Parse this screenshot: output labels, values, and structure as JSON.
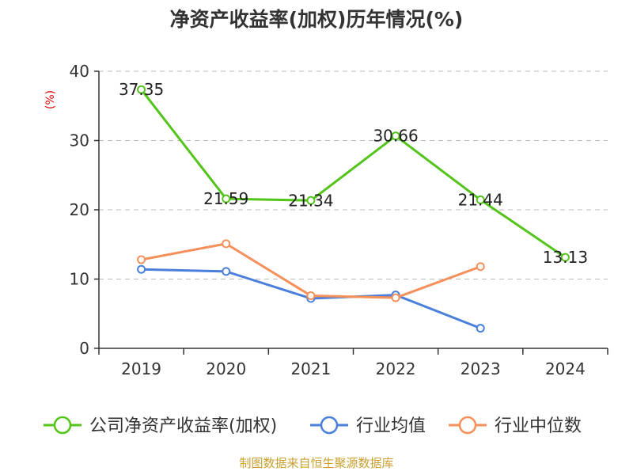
{
  "chart_data": {
    "type": "line",
    "title": "净资产收益率(加权)历年情况(%)",
    "ylabel": "(%)",
    "xlabel": "",
    "categories": [
      "2019",
      "2020",
      "2021",
      "2022",
      "2023",
      "2024"
    ],
    "ylim": [
      0,
      40
    ],
    "yticks": [
      0,
      10,
      20,
      30,
      40
    ],
    "grid": true,
    "legend_position": "bottom",
    "series": [
      {
        "name": "公司净资产收益率(加权)",
        "color": "#52c41a",
        "values": [
          37.35,
          21.59,
          21.34,
          30.66,
          21.44,
          13.13
        ],
        "labels": [
          "37.35",
          "21.59",
          "21.34",
          "30.66",
          "21.44",
          "13.13"
        ]
      },
      {
        "name": "行业均值",
        "color": "#4a7fdc",
        "values": [
          11.4,
          11.1,
          7.2,
          7.7,
          2.9,
          null
        ]
      },
      {
        "name": "行业中位数",
        "color": "#f5905a",
        "values": [
          12.8,
          15.1,
          7.6,
          7.3,
          11.8,
          null
        ]
      }
    ]
  },
  "source": "制图数据来自恒生聚源数据库"
}
